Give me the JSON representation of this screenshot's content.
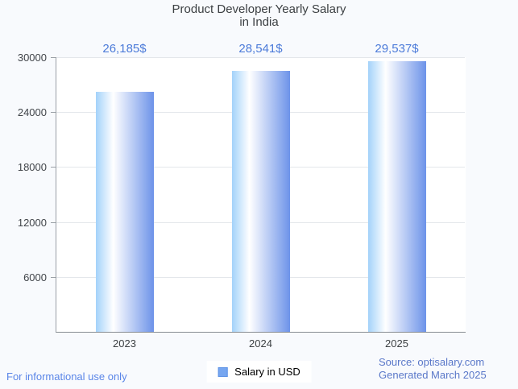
{
  "header": {
    "title_line1": "Product Developer Yearly Salary",
    "title_line2": "in India"
  },
  "legend": {
    "label": "Salary in USD"
  },
  "footer": {
    "disclaimer": "For informational use only",
    "source": "Source: optisalary.com",
    "generated": "Generated March 2025"
  },
  "colors": {
    "background": "#f8fafd",
    "plot_background": "#ffffff",
    "gridline": "#e4e7eb",
    "axis": "#9aa0a6",
    "title_text": "#3c4043",
    "value_label": "#4c7bd9",
    "bar_gradient_left": "#a3d2fa",
    "bar_gradient_mid": "#ffffff",
    "bar_gradient_right": "#6d93e9",
    "legend_marker_fill": "#76a6f0",
    "legend_marker_border": "#5e93e6",
    "footer_link": "#5b86e8",
    "source_text": "#5a78c9"
  },
  "chart_data": {
    "type": "bar",
    "title": "Product Developer Yearly Salary in India",
    "categories": [
      "2023",
      "2024",
      "2025"
    ],
    "series": [
      {
        "name": "Salary in USD",
        "values": [
          26185,
          28541,
          29537
        ]
      }
    ],
    "value_labels": [
      "26,185$",
      "28,541$",
      "29,537$"
    ],
    "xlabel": "",
    "ylabel": "",
    "ylim": [
      0,
      30000
    ],
    "yticks": [
      6000,
      12000,
      18000,
      24000,
      30000
    ],
    "grid": true,
    "legend_position": "bottom"
  }
}
